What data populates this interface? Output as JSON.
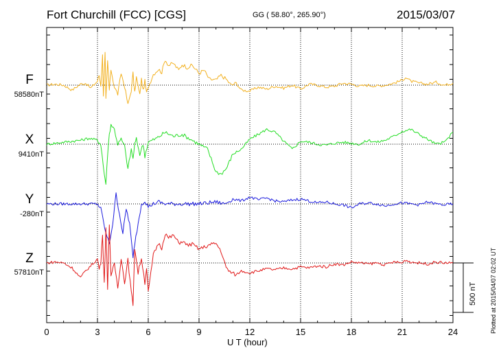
{
  "header": {
    "station": "Fort Churchill (FCC)  [CGS]",
    "coords": "GG ( 58.80°, 265.90°)",
    "date": "2015/03/07"
  },
  "plotted_note": "Plotted at 2015/04/07 02:02 UT",
  "scale_bar_label": "500 nT",
  "colors": {
    "F": "#f2b01e",
    "X": "#22dd22",
    "Y": "#1a1add",
    "Z": "#e01515",
    "axis": "#000000"
  },
  "chart_data": {
    "type": "line",
    "title": "Fort Churchill (FCC)  [CGS]",
    "xlabel": "U T (hour)",
    "ylabel": "",
    "xlim": [
      0,
      24
    ],
    "x_ticks": [
      0,
      3,
      6,
      9,
      12,
      15,
      18,
      21,
      24
    ],
    "x_tick_labels": [
      "0",
      "3",
      "6",
      "9",
      "12",
      "15",
      "18",
      "21",
      "24"
    ],
    "grid": "vertical dotted at 3-hour intervals; horizontal dotted baseline per component",
    "scale_bar_nT": 500,
    "series": [
      {
        "name": "F",
        "baseline_label": "58580nT",
        "baseline_nT": 58580,
        "color": "#f2b01e",
        "x": [
          0,
          0.5,
          1,
          1.5,
          2,
          2.3,
          2.6,
          3,
          3.1,
          3.2,
          3.3,
          3.35,
          3.45,
          3.5,
          3.6,
          3.7,
          3.8,
          4,
          4.2,
          4.4,
          4.6,
          4.8,
          5,
          5.1,
          5.2,
          5.3,
          5.5,
          5.6,
          5.7,
          5.8,
          5.9,
          6,
          6.3,
          6.6,
          6.8,
          7,
          7.2,
          7.5,
          7.8,
          8,
          8.3,
          8.6,
          9,
          9.3,
          9.6,
          10,
          10.3,
          10.6,
          10.9,
          11.2,
          11.5,
          12,
          12.5,
          13,
          13.5,
          14,
          14.5,
          15,
          15.5,
          16,
          16.5,
          17,
          17.5,
          18,
          18.5,
          19,
          19.5,
          20,
          20.5,
          21,
          21.2,
          21.5,
          22,
          22.5,
          23,
          23.5,
          24
        ],
        "y": [
          0,
          10,
          0,
          -50,
          10,
          20,
          -30,
          40,
          100,
          0,
          300,
          -100,
          320,
          -150,
          240,
          -50,
          160,
          -20,
          -90,
          120,
          -10,
          -200,
          -50,
          120,
          -80,
          80,
          -100,
          60,
          -60,
          40,
          -80,
          -20,
          110,
          160,
          130,
          260,
          200,
          220,
          150,
          210,
          180,
          200,
          120,
          150,
          60,
          50,
          100,
          60,
          0,
          20,
          -50,
          -60,
          -20,
          -40,
          -10,
          -30,
          0,
          -40,
          10,
          0,
          -20,
          -10,
          20,
          10,
          -10,
          0,
          -10,
          0,
          20,
          50,
          80,
          40,
          20,
          10,
          30,
          0,
          20
        ]
      },
      {
        "name": "X",
        "baseline_label": "9410nT",
        "baseline_nT": 9410,
        "color": "#22dd22",
        "x": [
          0,
          0.5,
          1,
          1.5,
          2,
          2.5,
          3,
          3.2,
          3.4,
          3.5,
          3.6,
          3.7,
          3.8,
          4,
          4.2,
          4.4,
          4.6,
          4.8,
          5,
          5.1,
          5.2,
          5.3,
          5.5,
          5.7,
          5.8,
          6,
          6.5,
          7,
          7.5,
          8,
          8.5,
          9,
          9.5,
          10,
          10.3,
          10.6,
          11,
          11.5,
          12,
          12.5,
          13,
          13.5,
          14,
          14.5,
          15,
          15.5,
          16,
          16.5,
          17,
          17.5,
          18,
          18.5,
          19,
          19.5,
          20,
          20.5,
          21,
          21.5,
          22,
          22.5,
          23,
          23.5,
          24
        ],
        "y": [
          0,
          10,
          20,
          30,
          40,
          60,
          40,
          0,
          -300,
          -400,
          -100,
          100,
          200,
          150,
          0,
          50,
          -20,
          -250,
          -50,
          -150,
          0,
          50,
          -100,
          0,
          -120,
          20,
          60,
          120,
          80,
          100,
          50,
          0,
          -50,
          -280,
          -300,
          -250,
          -100,
          -50,
          50,
          100,
          150,
          120,
          30,
          -50,
          30,
          20,
          0,
          -10,
          10,
          20,
          10,
          0,
          40,
          20,
          40,
          80,
          130,
          150,
          100,
          50,
          0,
          20,
          120
        ]
      },
      {
        "name": "Y",
        "baseline_label": "-280nT",
        "baseline_nT": -280,
        "color": "#1a1add",
        "x": [
          0,
          1,
          2,
          2.5,
          3,
          3.2,
          3.5,
          3.7,
          3.9,
          4.1,
          4.3,
          4.5,
          4.7,
          4.9,
          5.1,
          5.2,
          5.4,
          5.6,
          5.8,
          6,
          6.3,
          6.6,
          7,
          8,
          9,
          10,
          10.5,
          11,
          11.5,
          12,
          12.5,
          13,
          13.5,
          14,
          14.5,
          15,
          15.5,
          16,
          16.5,
          17,
          17.5,
          18,
          18.5,
          19,
          19.5,
          20,
          20.5,
          21,
          21.5,
          22,
          22.5,
          23,
          23.5,
          24
        ],
        "y": [
          0,
          0,
          0,
          0,
          0,
          -50,
          -300,
          -400,
          -200,
          100,
          -100,
          -300,
          -50,
          -200,
          -550,
          -400,
          -200,
          0,
          30,
          -30,
          0,
          20,
          0,
          0,
          0,
          20,
          0,
          50,
          30,
          70,
          40,
          60,
          30,
          20,
          40,
          50,
          30,
          10,
          20,
          0,
          -10,
          -40,
          0,
          10,
          0,
          -20,
          0,
          10,
          0,
          -10,
          20,
          0,
          -10,
          0
        ]
      },
      {
        "name": "Z",
        "baseline_label": "57810nT",
        "baseline_nT": 57810,
        "color": "#e01515",
        "x": [
          0,
          0.5,
          1,
          1.5,
          2,
          2.3,
          2.6,
          3,
          3.1,
          3.2,
          3.3,
          3.4,
          3.5,
          3.6,
          3.7,
          3.8,
          4,
          4.2,
          4.4,
          4.6,
          4.8,
          5,
          5.1,
          5.2,
          5.4,
          5.6,
          5.8,
          5.9,
          6,
          6.3,
          6.6,
          6.8,
          7,
          7.2,
          7.5,
          7.8,
          8,
          8.3,
          8.6,
          9,
          9.3,
          9.6,
          10,
          10.3,
          10.6,
          10.9,
          11.2,
          11.5,
          12,
          12.5,
          13,
          13.5,
          14,
          14.5,
          15,
          15.5,
          16,
          16.5,
          17,
          17.5,
          18,
          18.5,
          19,
          19.5,
          20,
          20.5,
          21,
          21.2,
          21.5,
          22,
          22.5,
          23,
          23.5,
          24
        ],
        "y": [
          0,
          10,
          0,
          -50,
          -150,
          -80,
          -30,
          40,
          -60,
          0,
          300,
          -200,
          350,
          -250,
          400,
          -150,
          0,
          -250,
          50,
          -200,
          30,
          -300,
          -420,
          150,
          -100,
          50,
          -200,
          -50,
          -300,
          80,
          200,
          150,
          300,
          250,
          280,
          200,
          220,
          180,
          190,
          140,
          160,
          180,
          200,
          120,
          -50,
          -100,
          -120,
          -80,
          -100,
          -80,
          -60,
          -70,
          -50,
          -60,
          -40,
          -50,
          -30,
          -40,
          -10,
          -20,
          10,
          0,
          -10,
          0,
          -20,
          10,
          0,
          30,
          10,
          0,
          -10,
          10,
          0,
          0
        ]
      }
    ]
  }
}
